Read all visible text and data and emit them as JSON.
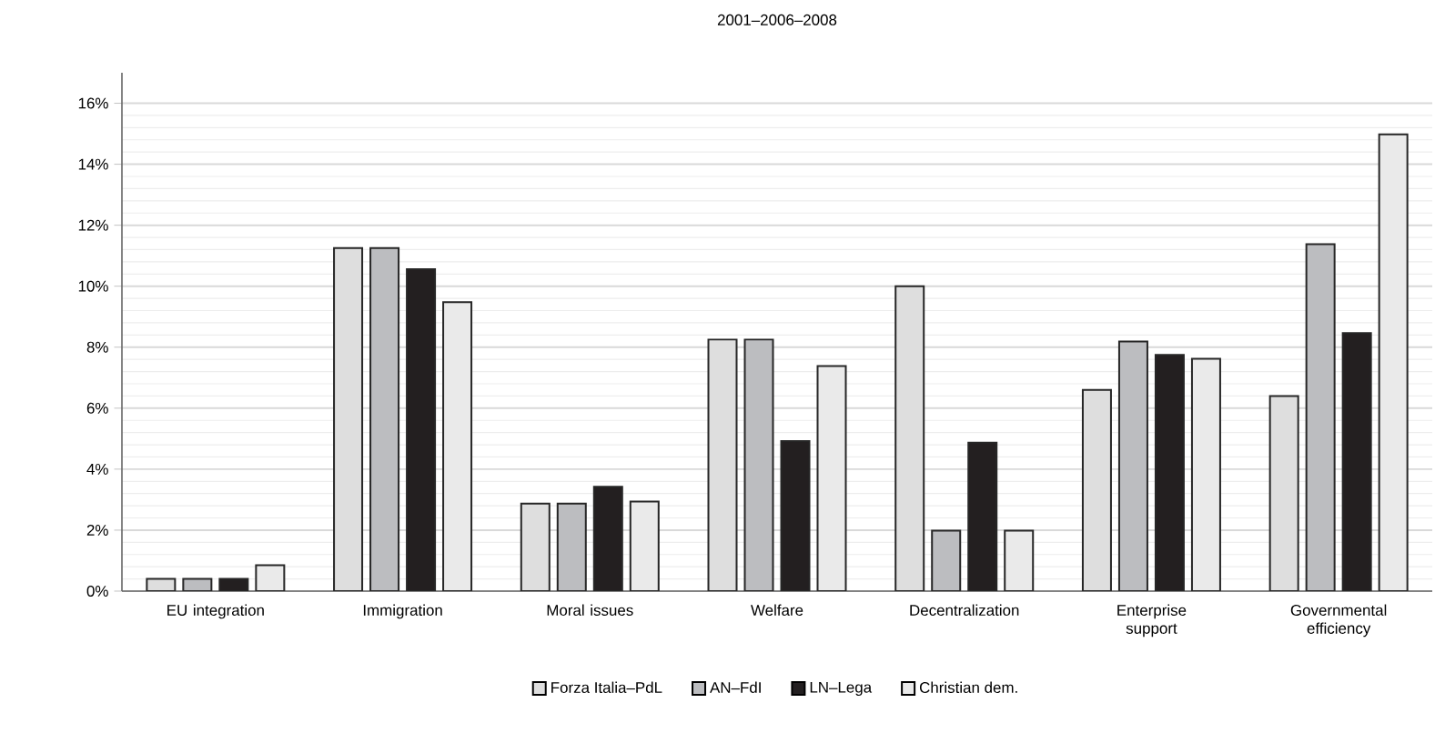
{
  "chart_data": {
    "type": "bar",
    "title": "2001–2006–2008",
    "categories": [
      "EU integration",
      "Immigration",
      "Moral issues",
      "Welfare",
      "Decentralization",
      "Enterprise support",
      "Governmental efficiency"
    ],
    "series": [
      {
        "name": "Forza Italia–PdL",
        "color": "#dedede",
        "values": [
          0.4,
          11.25,
          2.87,
          8.25,
          10.0,
          6.6,
          6.4
        ]
      },
      {
        "name": "AN–FdI",
        "color": "#bcbdc0",
        "values": [
          0.4,
          11.25,
          2.87,
          8.25,
          1.98,
          8.19,
          11.38
        ]
      },
      {
        "name": "LN–Lega",
        "color": "#231f20",
        "values": [
          0.4,
          10.56,
          3.42,
          4.92,
          4.87,
          7.75,
          8.46
        ]
      },
      {
        "name": "Christian dem.",
        "color": "#eaeaea",
        "values": [
          0.85,
          9.48,
          2.94,
          7.38,
          1.98,
          7.62,
          14.98
        ]
      }
    ],
    "ylim": [
      0,
      17
    ],
    "yticks": [
      {
        "value": 0,
        "label": "0%"
      },
      {
        "value": 2,
        "label": "2%"
      },
      {
        "value": 4,
        "label": "4%"
      },
      {
        "value": 6,
        "label": "6%"
      },
      {
        "value": 8,
        "label": "8%"
      },
      {
        "value": 10,
        "label": "10%"
      },
      {
        "value": 12,
        "label": "12%"
      },
      {
        "value": 14,
        "label": "14%"
      },
      {
        "value": 16,
        "label": "16%"
      }
    ],
    "grid": "y",
    "legend": "bottom"
  }
}
